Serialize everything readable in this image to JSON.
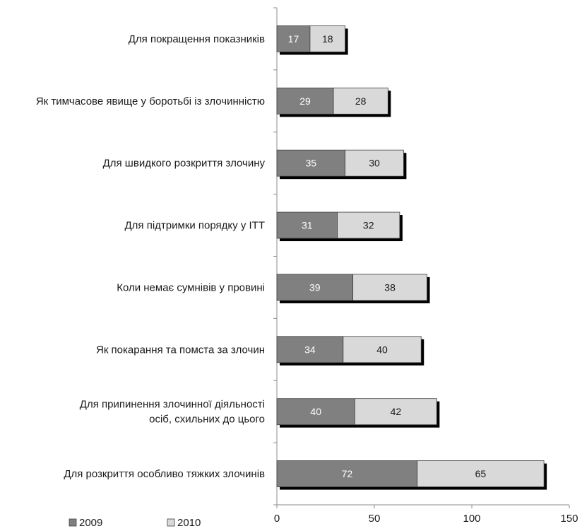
{
  "chart_data": {
    "type": "bar",
    "orientation": "horizontal",
    "stacked": true,
    "categories": [
      [
        "Для покращення показників"
      ],
      [
        "Як тимчасове явище у боротьбі із злочинністю"
      ],
      [
        "Для швидкого розкриття злочину"
      ],
      [
        "Для підтримки порядку у ІТТ"
      ],
      [
        "Коли немає сумнівів у провині"
      ],
      [
        "Як покарання та помста за злочин"
      ],
      [
        "Для припинення злочинної діяльності",
        "осіб, схильних до цього"
      ],
      [
        "Для розкриття особливо тяжких злочинів"
      ]
    ],
    "series": [
      {
        "name": "2009",
        "values": [
          17,
          29,
          35,
          31,
          39,
          34,
          40,
          72
        ],
        "color": "#808080",
        "label_color": "#ffffff"
      },
      {
        "name": "2010",
        "values": [
          18,
          28,
          30,
          32,
          38,
          40,
          42,
          65
        ],
        "color": "#d9d9d9",
        "label_color": "#1a1a1a"
      }
    ],
    "x_ticks": [
      0,
      50,
      100,
      150
    ],
    "xlim": [
      0,
      150
    ],
    "legend_position": "bottom-left",
    "grid": false,
    "shadow_color": "#000000"
  }
}
